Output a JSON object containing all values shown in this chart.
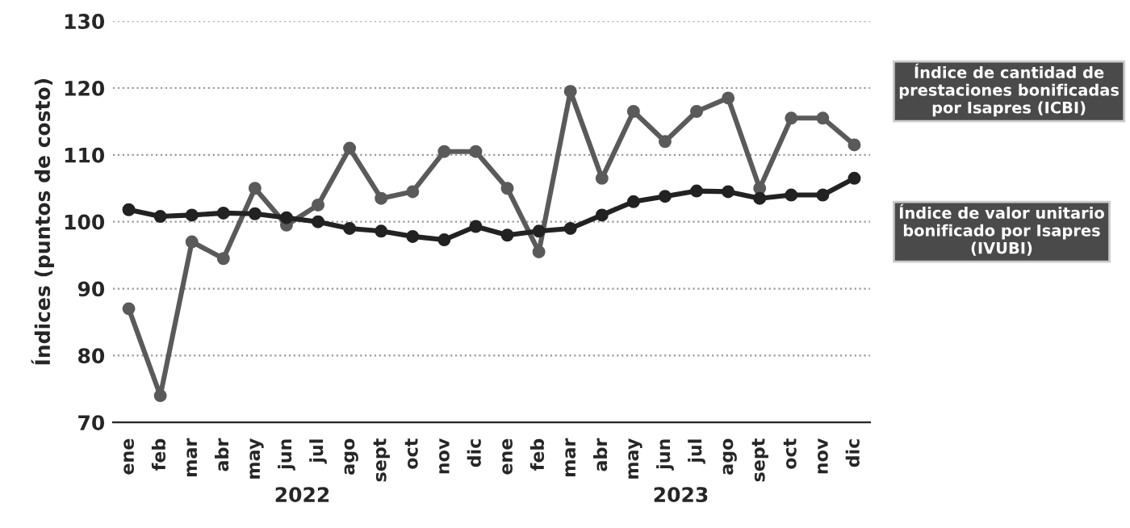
{
  "chart_data": {
    "type": "line",
    "ylabel": "Índices (puntos de costo)",
    "categories": [
      "ene",
      "feb",
      "mar",
      "abr",
      "may",
      "jun",
      "jul",
      "ago",
      "sept",
      "oct",
      "nov",
      "dic",
      "ene",
      "feb",
      "mar",
      "abr",
      "may",
      "jun",
      "jul",
      "ago",
      "sept",
      "oct",
      "nov",
      "dic"
    ],
    "series": [
      {
        "name": "Índice de cantidad de prestaciones bonificadas por Isapres (ICBI)",
        "color": "#5a5a5a",
        "values": [
          87,
          74,
          97,
          94.5,
          105,
          99.5,
          102.5,
          111,
          103.5,
          104.5,
          110.5,
          110.5,
          105,
          95.5,
          119.5,
          106.5,
          116.5,
          112,
          116.5,
          118.5,
          105,
          115.5,
          115.5,
          111.5
        ]
      },
      {
        "name": "Índice de valor unitario bonificado por Isapres (IVUBI)",
        "color": "#222222",
        "values": [
          101.8,
          100.8,
          101,
          101.3,
          101.2,
          100.6,
          100,
          99,
          98.6,
          97.8,
          97.3,
          99.3,
          98,
          98.6,
          99,
          101,
          103,
          103.8,
          104.6,
          104.5,
          103.5,
          104,
          104,
          106.5
        ]
      }
    ],
    "annotations": [
      "2022",
      "2023"
    ],
    "ylim": [
      70,
      130
    ],
    "yticks": [
      70,
      80,
      90,
      100,
      110,
      120,
      130
    ],
    "grid": "y",
    "legend": "right",
    "marker": "circle",
    "line_style": "solid"
  }
}
